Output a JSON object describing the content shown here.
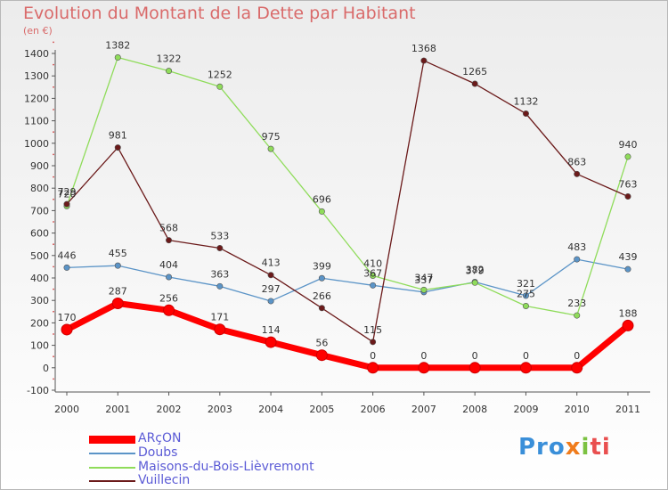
{
  "title": "Evolution du Montant de la Dette par Habitant",
  "unit_label": "(en €)",
  "brand": {
    "parts": [
      "Pro",
      "x",
      "i",
      "ti"
    ]
  },
  "chart_data": {
    "type": "line",
    "title": "Evolution du Montant de la Dette par Habitant",
    "xlabel": "",
    "ylabel": "(en €)",
    "x": [
      "2000",
      "2001",
      "2002",
      "2003",
      "2004",
      "2005",
      "2006",
      "2007",
      "2008",
      "2009",
      "2010",
      "2011"
    ],
    "ylim": [
      -100,
      1400
    ],
    "yticks": [
      -100,
      0,
      100,
      200,
      300,
      400,
      500,
      600,
      700,
      800,
      900,
      1000,
      1100,
      1200,
      1300,
      1400
    ],
    "grid": false,
    "legend": "bottom-left",
    "series": [
      {
        "name": "ARçON",
        "color": "#ff0000",
        "values": [
          170,
          287,
          256,
          171,
          114,
          56,
          0,
          0,
          0,
          0,
          0,
          188
        ]
      },
      {
        "name": "Doubs",
        "color": "#5b94c7",
        "values": [
          446,
          455,
          404,
          363,
          297,
          399,
          367,
          337,
          382,
          321,
          483,
          439
        ]
      },
      {
        "name": "Maisons-du-Bois-Lièvremont",
        "color": "#8fdc5a",
        "values": [
          720,
          1382,
          1322,
          1252,
          975,
          696,
          410,
          347,
          379,
          275,
          233,
          940
        ]
      },
      {
        "name": "Vuillecin",
        "color": "#6b1a1a",
        "values": [
          729,
          981,
          568,
          533,
          413,
          266,
          115,
          1368,
          1265,
          1132,
          863,
          763
        ]
      }
    ]
  }
}
